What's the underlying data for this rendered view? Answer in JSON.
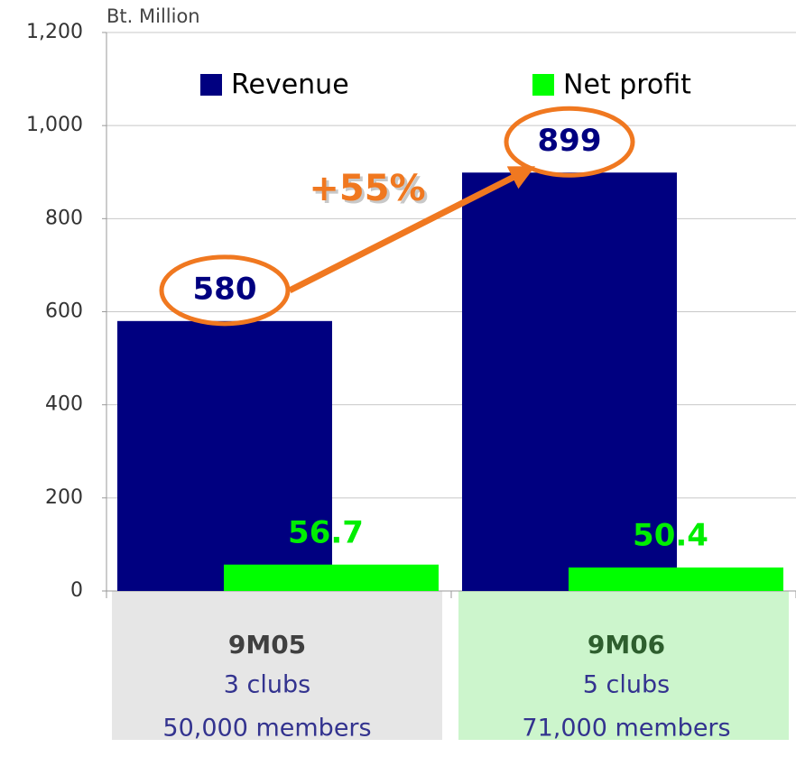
{
  "chart_data": {
    "type": "bar",
    "y_axis_label": "Bt. Million",
    "categories": [
      "9M05",
      "9M06"
    ],
    "category_details": [
      [
        "3 clubs",
        "50,000 members"
      ],
      [
        "5 clubs",
        "71,000 members"
      ]
    ],
    "series": [
      {
        "name": "Revenue",
        "color": "#000080",
        "values": [
          580,
          899
        ]
      },
      {
        "name": "Net profit",
        "color": "#00ff00",
        "values": [
          56.7,
          50.4
        ]
      }
    ],
    "annotation": "+55%",
    "ylim": [
      0,
      1200
    ],
    "yticks": [
      0,
      200,
      400,
      600,
      800,
      {
        "value": 1000,
        "label": "1,000"
      },
      {
        "value": 1200,
        "label": "1,200"
      }
    ],
    "grid": true
  }
}
